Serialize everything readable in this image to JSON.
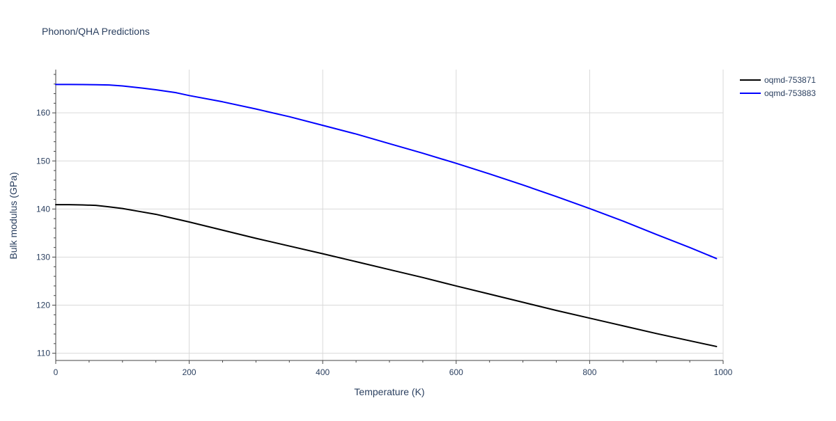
{
  "chart_data": {
    "type": "line",
    "title": "Phonon/QHA Predictions",
    "xlabel": "Temperature (K)",
    "ylabel": "Bulk modulus (GPa)",
    "xlim": [
      0,
      1000
    ],
    "ylim": [
      108.5,
      169
    ],
    "x_major_ticks": [
      0,
      200,
      400,
      600,
      800,
      1000
    ],
    "x_minor_ticks": [
      50,
      100,
      150,
      250,
      300,
      350,
      450,
      500,
      550,
      650,
      700,
      750,
      850,
      900,
      950
    ],
    "y_major_ticks": [
      110,
      120,
      130,
      140,
      150,
      160
    ],
    "y_minor_ticks": [
      112,
      114,
      116,
      118,
      122,
      124,
      126,
      128,
      132,
      134,
      136,
      138,
      142,
      144,
      146,
      148,
      152,
      154,
      156,
      158,
      162,
      164,
      166,
      168
    ],
    "grid": true,
    "legend_position": "top-right",
    "colors": {
      "text": "#2a3f5f",
      "grid": "#d9d9d9",
      "axis": "#444444",
      "background": "#ffffff"
    },
    "series": [
      {
        "name": "oqmd-753871",
        "color": "#000000",
        "x": [
          0,
          20,
          40,
          60,
          80,
          100,
          125,
          150,
          175,
          200,
          250,
          300,
          350,
          400,
          450,
          500,
          550,
          600,
          650,
          700,
          750,
          800,
          850,
          900,
          950,
          990
        ],
        "y": [
          140.9,
          140.9,
          140.85,
          140.75,
          140.45,
          140.1,
          139.5,
          138.9,
          138.1,
          137.3,
          135.6,
          133.9,
          132.3,
          130.7,
          129.05,
          127.4,
          125.75,
          124.0,
          122.3,
          120.6,
          118.9,
          117.3,
          115.7,
          114.1,
          112.6,
          111.4
        ]
      },
      {
        "name": "oqmd-753883",
        "color": "#0000ff",
        "x": [
          0,
          20,
          40,
          60,
          80,
          100,
          130,
          150,
          180,
          200,
          250,
          300,
          350,
          400,
          450,
          500,
          550,
          600,
          650,
          700,
          750,
          800,
          850,
          900,
          950,
          990
        ],
        "y": [
          165.9,
          165.9,
          165.88,
          165.85,
          165.8,
          165.6,
          165.15,
          164.8,
          164.2,
          163.6,
          162.3,
          160.8,
          159.2,
          157.4,
          155.6,
          153.6,
          151.6,
          149.5,
          147.3,
          145.0,
          142.6,
          140.1,
          137.5,
          134.7,
          132.0,
          129.7
        ]
      }
    ]
  }
}
